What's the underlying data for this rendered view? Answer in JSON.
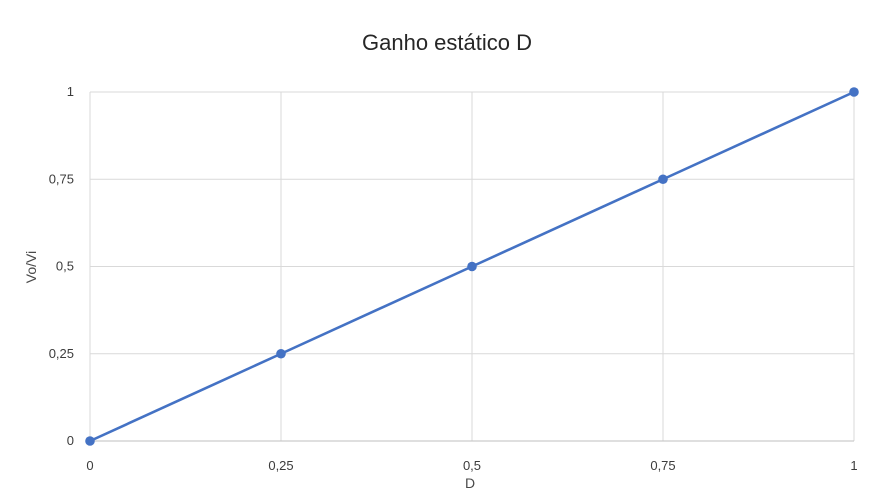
{
  "chart_data": {
    "type": "line",
    "title": "Ganho estático D",
    "xlabel": "D",
    "ylabel": "Vo/Vi",
    "x": [
      0,
      0.25,
      0.5,
      0.75,
      1
    ],
    "series": [
      {
        "values": [
          0,
          0.25,
          0.5,
          0.75,
          1
        ]
      }
    ],
    "xlim": [
      0,
      1
    ],
    "ylim": [
      0,
      1
    ],
    "x_ticks": [
      "0",
      "0,25",
      "0,5",
      "0,75",
      "1"
    ],
    "y_ticks": [
      "0",
      "0,25",
      "0,5",
      "0,75",
      "1"
    ],
    "grid": true,
    "markers": true,
    "line_color": "#4472c4",
    "grid_color": "#d9d9d9"
  }
}
